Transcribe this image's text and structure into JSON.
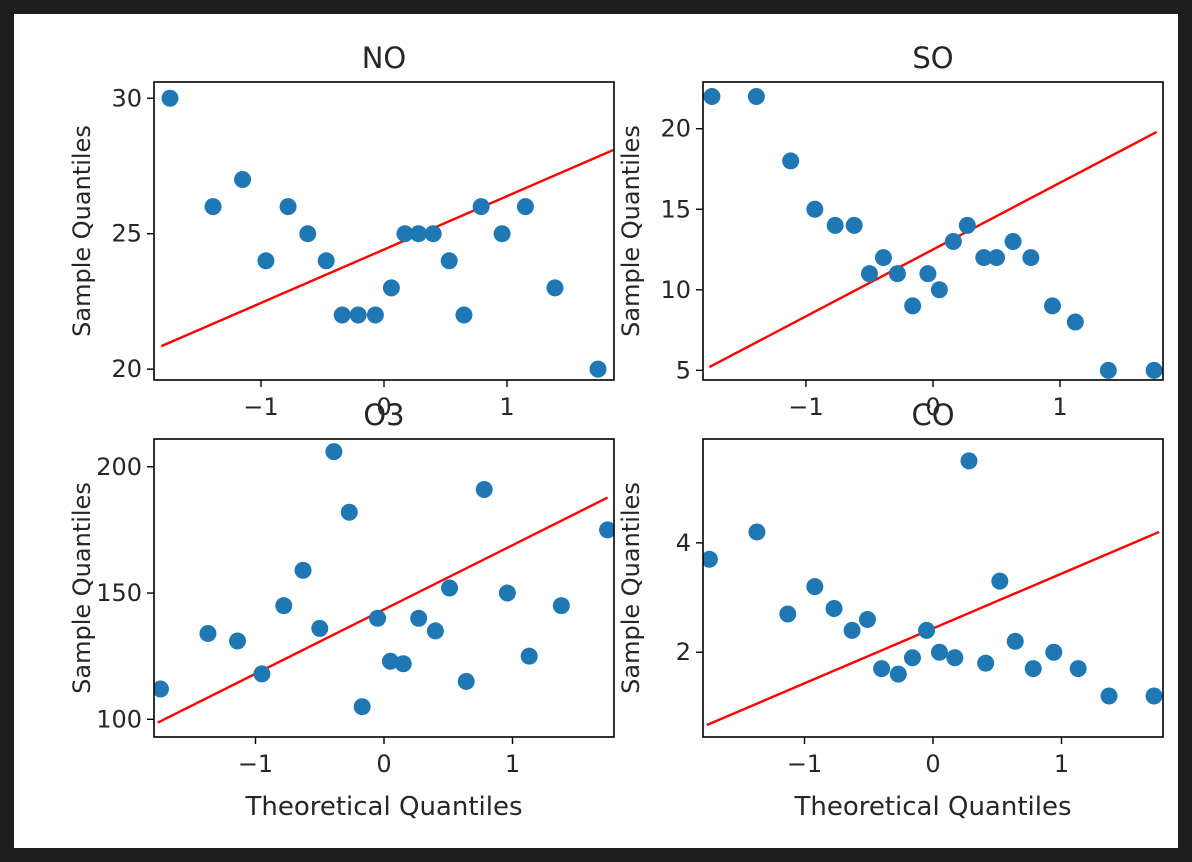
{
  "colors": {
    "page_background": "#1e1e1e",
    "figure_background": "#ffffff",
    "marker": "#1f77b4",
    "fit_line": "#ff0000",
    "text": "#262626"
  },
  "chart_data": [
    {
      "type": "scatter",
      "title": "NO",
      "xlabel": "",
      "ylabel": "Sample Quantiles",
      "xlim": [
        -1.87,
        1.87
      ],
      "ylim": [
        19.6,
        30.6
      ],
      "xticks": [
        -1,
        0,
        1
      ],
      "xtick_labels": [
        "−1",
        "0",
        "1"
      ],
      "yticks": [
        20,
        25,
        30
      ],
      "ytick_labels": [
        "20",
        "25",
        "30"
      ],
      "grid": false,
      "points": {
        "x": [
          -1.74,
          -1.39,
          -1.15,
          -0.96,
          -0.78,
          -0.62,
          -0.47,
          -0.34,
          -0.21,
          -0.07,
          0.06,
          0.17,
          0.28,
          0.4,
          0.53,
          0.65,
          0.79,
          0.96,
          1.15,
          1.39,
          1.74
        ],
        "y": [
          30,
          26,
          27,
          24,
          26,
          25,
          24,
          22,
          22,
          22,
          23,
          25,
          25,
          25,
          24,
          22,
          26,
          25,
          26,
          23,
          20
        ]
      },
      "fit_line": {
        "x": [
          -1.81,
          1.87
        ],
        "y": [
          20.85,
          28.1
        ]
      }
    },
    {
      "type": "scatter",
      "title": "SO",
      "xlabel": "",
      "ylabel": "Sample Quantiles",
      "xlim": [
        -1.81,
        1.81
      ],
      "ylim": [
        4.4,
        22.9
      ],
      "xticks": [
        -1,
        0,
        1
      ],
      "xtick_labels": [
        "−1",
        "0",
        "1"
      ],
      "yticks": [
        5,
        10,
        15,
        20
      ],
      "ytick_labels": [
        "5",
        "10",
        "15",
        "20"
      ],
      "grid": false,
      "points": {
        "x": [
          -1.74,
          -1.39,
          -1.12,
          -0.93,
          -0.77,
          -0.62,
          -0.5,
          -0.39,
          -0.28,
          -0.16,
          -0.04,
          0.05,
          0.16,
          0.27,
          0.4,
          0.5,
          0.63,
          0.77,
          0.94,
          1.12,
          1.38,
          1.74
        ],
        "y": [
          22,
          22,
          18,
          15,
          14,
          14,
          11,
          12,
          11,
          9,
          11,
          10,
          13,
          14,
          12,
          12,
          13,
          12,
          9,
          8,
          5,
          5
        ]
      },
      "fit_line": {
        "x": [
          -1.76,
          1.76
        ],
        "y": [
          5.2,
          19.8
        ]
      }
    },
    {
      "type": "scatter",
      "title": "O3",
      "xlabel": "Theoretical Quantiles",
      "ylabel": "Sample Quantiles",
      "xlim": [
        -1.79,
        1.79
      ],
      "ylim": [
        93,
        211
      ],
      "xticks": [
        -1,
        0,
        1
      ],
      "xtick_labels": [
        "−1",
        "0",
        "1"
      ],
      "yticks": [
        100,
        150,
        200
      ],
      "ytick_labels": [
        "100",
        "150",
        "200"
      ],
      "grid": false,
      "points": {
        "x": [
          -1.74,
          -1.37,
          -1.14,
          -0.95,
          -0.78,
          -0.63,
          -0.5,
          -0.39,
          -0.27,
          -0.17,
          -0.05,
          0.05,
          0.15,
          0.27,
          0.4,
          0.51,
          0.64,
          0.78,
          0.96,
          1.13,
          1.38,
          1.74
        ],
        "y": [
          112,
          134,
          131,
          118,
          145,
          159,
          136,
          206,
          182,
          105,
          140,
          123,
          122,
          140,
          135,
          152,
          115,
          191,
          150,
          125,
          145,
          175
        ]
      },
      "fit_line": {
        "x": [
          -1.76,
          1.74
        ],
        "y": [
          98.7,
          187.8
        ]
      }
    },
    {
      "type": "scatter",
      "title": "CO",
      "xlabel": "Theoretical Quantiles",
      "ylabel": "Sample Quantiles",
      "xlim": [
        -1.79,
        1.79
      ],
      "ylim": [
        0.45,
        5.9
      ],
      "xticks": [
        -1,
        0,
        1
      ],
      "xtick_labels": [
        "−1",
        "0",
        "1"
      ],
      "yticks": [
        2,
        4
      ],
      "ytick_labels": [
        "2",
        "4"
      ],
      "grid": false,
      "points": {
        "x": [
          -1.74,
          -1.37,
          -1.13,
          -0.92,
          -0.77,
          -0.63,
          -0.51,
          -0.4,
          -0.27,
          -0.16,
          -0.05,
          0.05,
          0.17,
          0.28,
          0.41,
          0.52,
          0.64,
          0.78,
          0.94,
          1.13,
          1.37,
          1.72
        ],
        "y": [
          3.7,
          4.2,
          2.7,
          3.2,
          2.8,
          2.4,
          2.6,
          1.7,
          1.6,
          1.9,
          2.4,
          2.0,
          1.9,
          5.5,
          1.8,
          3.3,
          2.2,
          1.7,
          2.0,
          1.7,
          1.2,
          1.2
        ]
      },
      "fit_line": {
        "x": [
          -1.76,
          1.76
        ],
        "y": [
          0.67,
          4.2
        ]
      }
    }
  ]
}
